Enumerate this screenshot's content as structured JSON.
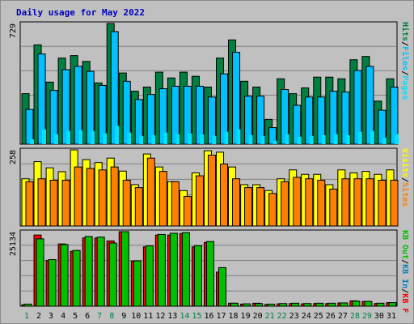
{
  "title": "Daily usage for May 2022",
  "colors": {
    "background": "#c0c0c0",
    "hits": "#008040",
    "files": "#00c0ff",
    "pages": "#00e0ff",
    "visits": "#ffff00",
    "sites": "#ff8000",
    "kb_out": "#00c000",
    "kb_in": "#0080c0",
    "kb_f": "#ff0000",
    "weekday_label": "#000000",
    "weekend_label": "#008040"
  },
  "chart_data": [
    {
      "type": "bar",
      "name": "hits-files-pages",
      "categories": [
        "1",
        "2",
        "3",
        "4",
        "5",
        "6",
        "7",
        "8",
        "9",
        "10",
        "11",
        "12",
        "13",
        "14",
        "15",
        "16",
        "17",
        "18",
        "19",
        "20",
        "21",
        "22",
        "23",
        "24",
        "25",
        "26",
        "27",
        "28",
        "29",
        "30",
        "31"
      ],
      "weekend_days": [
        "1",
        "7",
        "8",
        "14",
        "15",
        "21",
        "22",
        "28",
        "29"
      ],
      "ytick_label": "729",
      "ylim": [
        0,
        729
      ],
      "side_labels": [
        "Pages",
        "Files",
        "Hits"
      ],
      "series": [
        {
          "name": "Hits",
          "values": [
            305,
            600,
            375,
            520,
            535,
            500,
            370,
            729,
            430,
            320,
            345,
            435,
            400,
            435,
            410,
            345,
            520,
            630,
            380,
            345,
            150,
            395,
            305,
            340,
            405,
            405,
            395,
            510,
            530,
            260,
            395
          ]
        },
        {
          "name": "Files",
          "values": [
            210,
            545,
            325,
            450,
            470,
            440,
            355,
            680,
            380,
            270,
            300,
            335,
            350,
            350,
            350,
            285,
            425,
            555,
            290,
            290,
            100,
            330,
            235,
            285,
            285,
            320,
            315,
            445,
            470,
            205,
            345
          ]
        },
        {
          "name": "Pages",
          "values": [
            30,
            90,
            60,
            80,
            85,
            80,
            65,
            110,
            70,
            50,
            55,
            70,
            60,
            65,
            60,
            50,
            75,
            90,
            55,
            50,
            20,
            60,
            45,
            50,
            55,
            60,
            55,
            75,
            80,
            40,
            60
          ]
        }
      ]
    },
    {
      "type": "bar",
      "name": "visits-sites",
      "categories": [
        "1",
        "2",
        "3",
        "4",
        "5",
        "6",
        "7",
        "8",
        "9",
        "10",
        "11",
        "12",
        "13",
        "14",
        "15",
        "16",
        "17",
        "18",
        "19",
        "20",
        "21",
        "22",
        "23",
        "24",
        "25",
        "26",
        "27",
        "28",
        "29",
        "30",
        "31"
      ],
      "ytick_label": "258",
      "ylim": [
        0,
        258
      ],
      "side_labels": [
        "Visits",
        "Sites"
      ],
      "series": [
        {
          "name": "Visits",
          "values": [
            160,
            218,
            197,
            184,
            258,
            225,
            215,
            230,
            186,
            140,
            244,
            200,
            150,
            120,
            180,
            255,
            250,
            200,
            140,
            140,
            120,
            160,
            190,
            175,
            175,
            140,
            190,
            180,
            185,
            175,
            190
          ]
        },
        {
          "name": "Sites",
          "values": [
            150,
            160,
            155,
            155,
            200,
            195,
            190,
            200,
            155,
            130,
            230,
            185,
            150,
            100,
            170,
            240,
            210,
            160,
            130,
            130,
            110,
            150,
            165,
            160,
            155,
            125,
            160,
            160,
            160,
            155,
            155
          ]
        }
      ]
    },
    {
      "type": "bar",
      "name": "kbytes",
      "categories": [
        "1",
        "2",
        "3",
        "4",
        "5",
        "6",
        "7",
        "8",
        "9",
        "10",
        "11",
        "12",
        "13",
        "14",
        "15",
        "16",
        "17",
        "18",
        "19",
        "20",
        "21",
        "22",
        "23",
        "24",
        "25",
        "26",
        "27",
        "28",
        "29",
        "30",
        "31"
      ],
      "ytick_label": "25134",
      "ylim": [
        0,
        25134
      ],
      "side_labels": [
        "KB F",
        "KB In",
        "KB Out"
      ],
      "series": [
        {
          "name": "KB F",
          "values": [
            500,
            24000,
            15400,
            21000,
            18500,
            23000,
            23000,
            22000,
            25134,
            15200,
            20000,
            24000,
            24000,
            24500,
            20000,
            21500,
            11500,
            1000,
            700,
            1000,
            600,
            800,
            900,
            800,
            900,
            900,
            1100,
            1800,
            1600,
            900,
            1200
          ]
        },
        {
          "name": "KB Out",
          "values": [
            700,
            22700,
            15700,
            20800,
            18800,
            23500,
            23300,
            21300,
            25134,
            15300,
            20300,
            24200,
            24600,
            24800,
            20400,
            21800,
            13000,
            1000,
            800,
            900,
            700,
            900,
            1000,
            900,
            1000,
            1000,
            1100,
            1700,
            1600,
            1000,
            1200
          ]
        }
      ]
    }
  ]
}
